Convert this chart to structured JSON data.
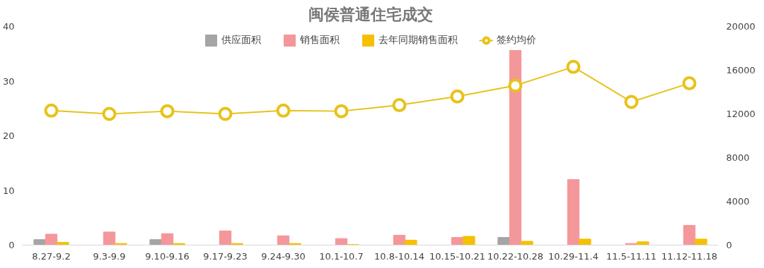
{
  "chart_data": {
    "type": "bar",
    "title": "闽侯普通住宅成交",
    "categories": [
      "8.27-9.2",
      "9.3-9.9",
      "9.10-9.16",
      "9.17-9.23",
      "9.24-9.30",
      "10.1-10.7",
      "10.8-10.14",
      "10.15-10.21",
      "10.22-10.28",
      "10.29-11.4",
      "11.5-11.11",
      "11.12-11.18"
    ],
    "series": [
      {
        "name": "供应面积",
        "color": "#a5a5a5",
        "values": [
          1.0,
          0,
          1.0,
          0,
          0,
          0,
          0,
          0,
          1.4,
          0,
          0,
          0
        ]
      },
      {
        "name": "销售面积",
        "color": "#f4979a",
        "values": [
          2.0,
          2.4,
          2.1,
          2.6,
          1.7,
          1.2,
          1.8,
          1.4,
          35.6,
          12.0,
          0.3,
          3.6
        ]
      },
      {
        "name": "去年同期销售面积",
        "color": "#f5c000",
        "values": [
          0.5,
          0.3,
          0.3,
          0.3,
          0.3,
          0.1,
          0.9,
          1.6,
          0.7,
          1.1,
          0.6,
          1.1
        ]
      },
      {
        "name": "签约均价",
        "type": "line",
        "axis": "y2",
        "color": "#e8c21a",
        "values": [
          12300,
          12000,
          12250,
          12000,
          12300,
          12250,
          12800,
          13600,
          14600,
          16300,
          13100,
          14800
        ]
      }
    ],
    "ylim": [
      0,
      40
    ],
    "yticks": [
      0,
      10,
      20,
      30,
      40
    ],
    "y2lim": [
      0,
      20000
    ],
    "y2ticks": [
      0,
      4000,
      8000,
      12000,
      16000,
      20000
    ],
    "grid": false,
    "legend": "top",
    "marker": "circle"
  }
}
